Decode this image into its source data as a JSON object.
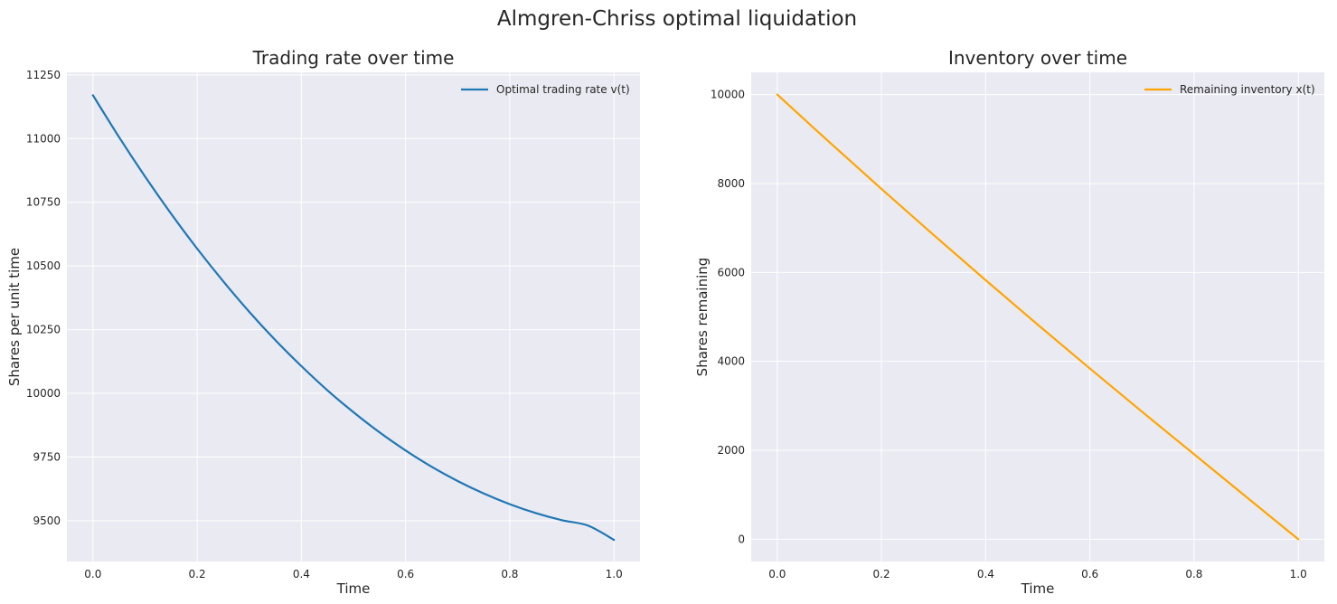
{
  "figure": {
    "title": "Almgren-Chriss optimal liquidation"
  },
  "chart_data": [
    {
      "type": "line",
      "title": "Trading rate over time",
      "xlabel": "Time",
      "ylabel": "Shares per unit time",
      "xlim": [
        -0.05,
        1.05
      ],
      "ylim": [
        9340,
        11260
      ],
      "xticks": [
        0.0,
        0.2,
        0.4,
        0.6,
        0.8,
        1.0
      ],
      "xtick_labels": [
        "0.0",
        "0.2",
        "0.4",
        "0.6",
        "0.8",
        "1.0"
      ],
      "yticks": [
        9500,
        9750,
        10000,
        10250,
        10500,
        10750,
        11000,
        11250
      ],
      "ytick_labels": [
        "9500",
        "9750",
        "10000",
        "10250",
        "10500",
        "10750",
        "11000",
        "11250"
      ],
      "grid": true,
      "legend_position": "top-right",
      "series": [
        {
          "name": "Optimal trading rate v(t)",
          "color": "#1f77b4",
          "x": [
            0.0,
            0.05,
            0.1,
            0.15,
            0.2,
            0.25,
            0.3,
            0.35,
            0.4,
            0.45,
            0.5,
            0.55,
            0.6,
            0.65,
            0.7,
            0.75,
            0.8,
            0.85,
            0.9,
            0.95,
            1.0
          ],
          "y": [
            11170,
            11006,
            10851,
            10705,
            10568,
            10440,
            10320,
            10209,
            10107,
            10012,
            9926,
            9847,
            9776,
            9712,
            9656,
            9607,
            9565,
            9530,
            9502,
            9481,
            9425
          ]
        }
      ]
    },
    {
      "type": "line",
      "title": "Inventory over time",
      "xlabel": "Time",
      "ylabel": "Shares remaining",
      "xlim": [
        -0.05,
        1.05
      ],
      "ylim": [
        -500,
        10500
      ],
      "xticks": [
        0.0,
        0.2,
        0.4,
        0.6,
        0.8,
        1.0
      ],
      "xtick_labels": [
        "0.0",
        "0.2",
        "0.4",
        "0.6",
        "0.8",
        "1.0"
      ],
      "yticks": [
        0,
        2000,
        4000,
        6000,
        8000,
        10000
      ],
      "ytick_labels": [
        "0",
        "2000",
        "4000",
        "6000",
        "8000",
        "10000"
      ],
      "grid": true,
      "legend_position": "top-right",
      "series": [
        {
          "name": "Remaining inventory x(t)",
          "color": "#ffa500",
          "x": [
            0.0,
            0.1,
            0.2,
            0.3,
            0.4,
            0.5,
            0.6,
            0.7,
            0.8,
            0.9,
            1.0
          ],
          "y": [
            10000,
            8930,
            7878,
            6843,
            5826,
            4825,
            3840,
            2869,
            1912,
            954,
            0
          ]
        }
      ]
    }
  ]
}
